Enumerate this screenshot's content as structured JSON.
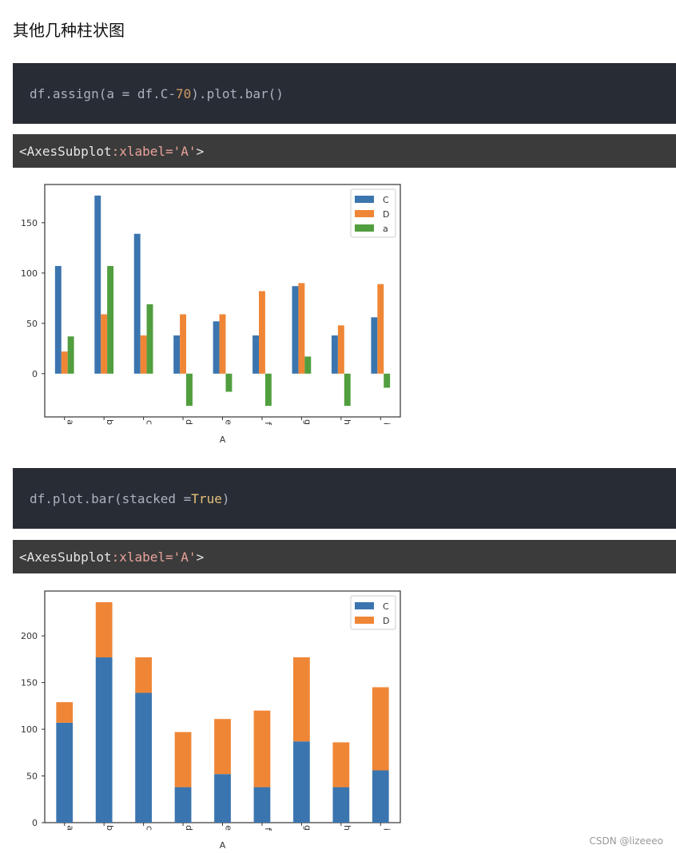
{
  "heading": "其他几种柱状图",
  "code1": {
    "prefix": "df.assign(a = df.C- ",
    "number": "70",
    "suffix": ").plot.bar()"
  },
  "output1": {
    "prefix": "<AxesSubplot",
    "attr": ":xlabel='A'",
    "suffix": ">"
  },
  "code2": {
    "prefix": "df.plot.bar(stacked = ",
    "keyword": "True",
    "suffix": ")"
  },
  "output2": {
    "prefix": "<AxesSubplot",
    "attr": ":xlabel='A'",
    "suffix": ">"
  },
  "watermark": "CSDN @lizeeeo",
  "colors": {
    "C": "#3b75af",
    "D": "#ef8636",
    "a": "#519e3e"
  },
  "chart_data": [
    {
      "type": "bar",
      "xlabel": "A",
      "ylabel": "",
      "categories": [
        "a",
        "b",
        "c",
        "d",
        "e",
        "f",
        "g",
        "h",
        "i"
      ],
      "series": [
        {
          "name": "C",
          "values": [
            107,
            177,
            139,
            38,
            52,
            38,
            87,
            38,
            56
          ]
        },
        {
          "name": "D",
          "values": [
            22,
            59,
            38,
            59,
            59,
            82,
            90,
            48,
            89
          ]
        },
        {
          "name": "a",
          "values": [
            37,
            107,
            69,
            -32,
            -18,
            -32,
            17,
            -32,
            -14
          ]
        }
      ],
      "yticks": [
        0,
        50,
        100,
        150
      ],
      "ylim": [
        -43,
        188
      ],
      "legend": "top-right",
      "stacked": false
    },
    {
      "type": "bar",
      "xlabel": "A",
      "ylabel": "",
      "categories": [
        "a",
        "b",
        "c",
        "d",
        "e",
        "f",
        "g",
        "h",
        "i"
      ],
      "series": [
        {
          "name": "C",
          "values": [
            107,
            177,
            139,
            38,
            52,
            38,
            87,
            38,
            56
          ]
        },
        {
          "name": "D",
          "values": [
            22,
            59,
            38,
            59,
            59,
            82,
            90,
            48,
            89
          ]
        }
      ],
      "yticks": [
        0,
        50,
        100,
        150,
        200
      ],
      "ylim": [
        0,
        248
      ],
      "legend": "top-right",
      "stacked": true
    }
  ]
}
